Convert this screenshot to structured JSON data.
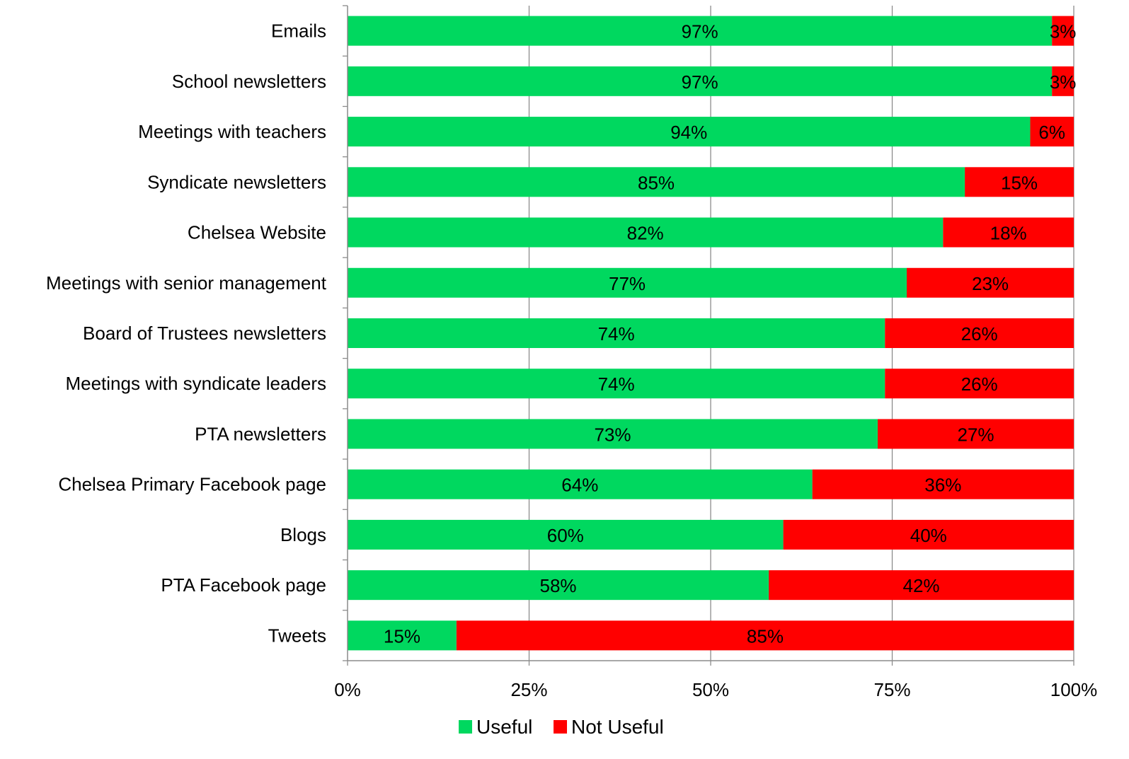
{
  "chart_data": {
    "type": "bar",
    "orientation": "horizontal",
    "stacked": true,
    "percent": true,
    "categories": [
      "Emails",
      "School newsletters",
      "Meetings with teachers",
      "Syndicate newsletters",
      "Chelsea Website",
      "Meetings with senior management",
      "Board of Trustees newsletters",
      "Meetings with syndicate leaders",
      "PTA newsletters",
      "Chelsea Primary Facebook page",
      "Blogs",
      "PTA Facebook page",
      "Tweets"
    ],
    "series": [
      {
        "name": "Useful",
        "color": "#00D85F",
        "values": [
          97,
          97,
          94,
          85,
          82,
          77,
          74,
          74,
          73,
          64,
          60,
          58,
          15
        ]
      },
      {
        "name": "Not Useful",
        "color": "#FF0000",
        "values": [
          3,
          3,
          6,
          15,
          18,
          23,
          26,
          26,
          27,
          36,
          40,
          42,
          85
        ]
      }
    ],
    "xlim": [
      0,
      100
    ],
    "xticks": [
      "0%",
      "25%",
      "50%",
      "75%",
      "100%"
    ],
    "grid": true,
    "legend": "bottom",
    "data_label_suffix": "%"
  }
}
